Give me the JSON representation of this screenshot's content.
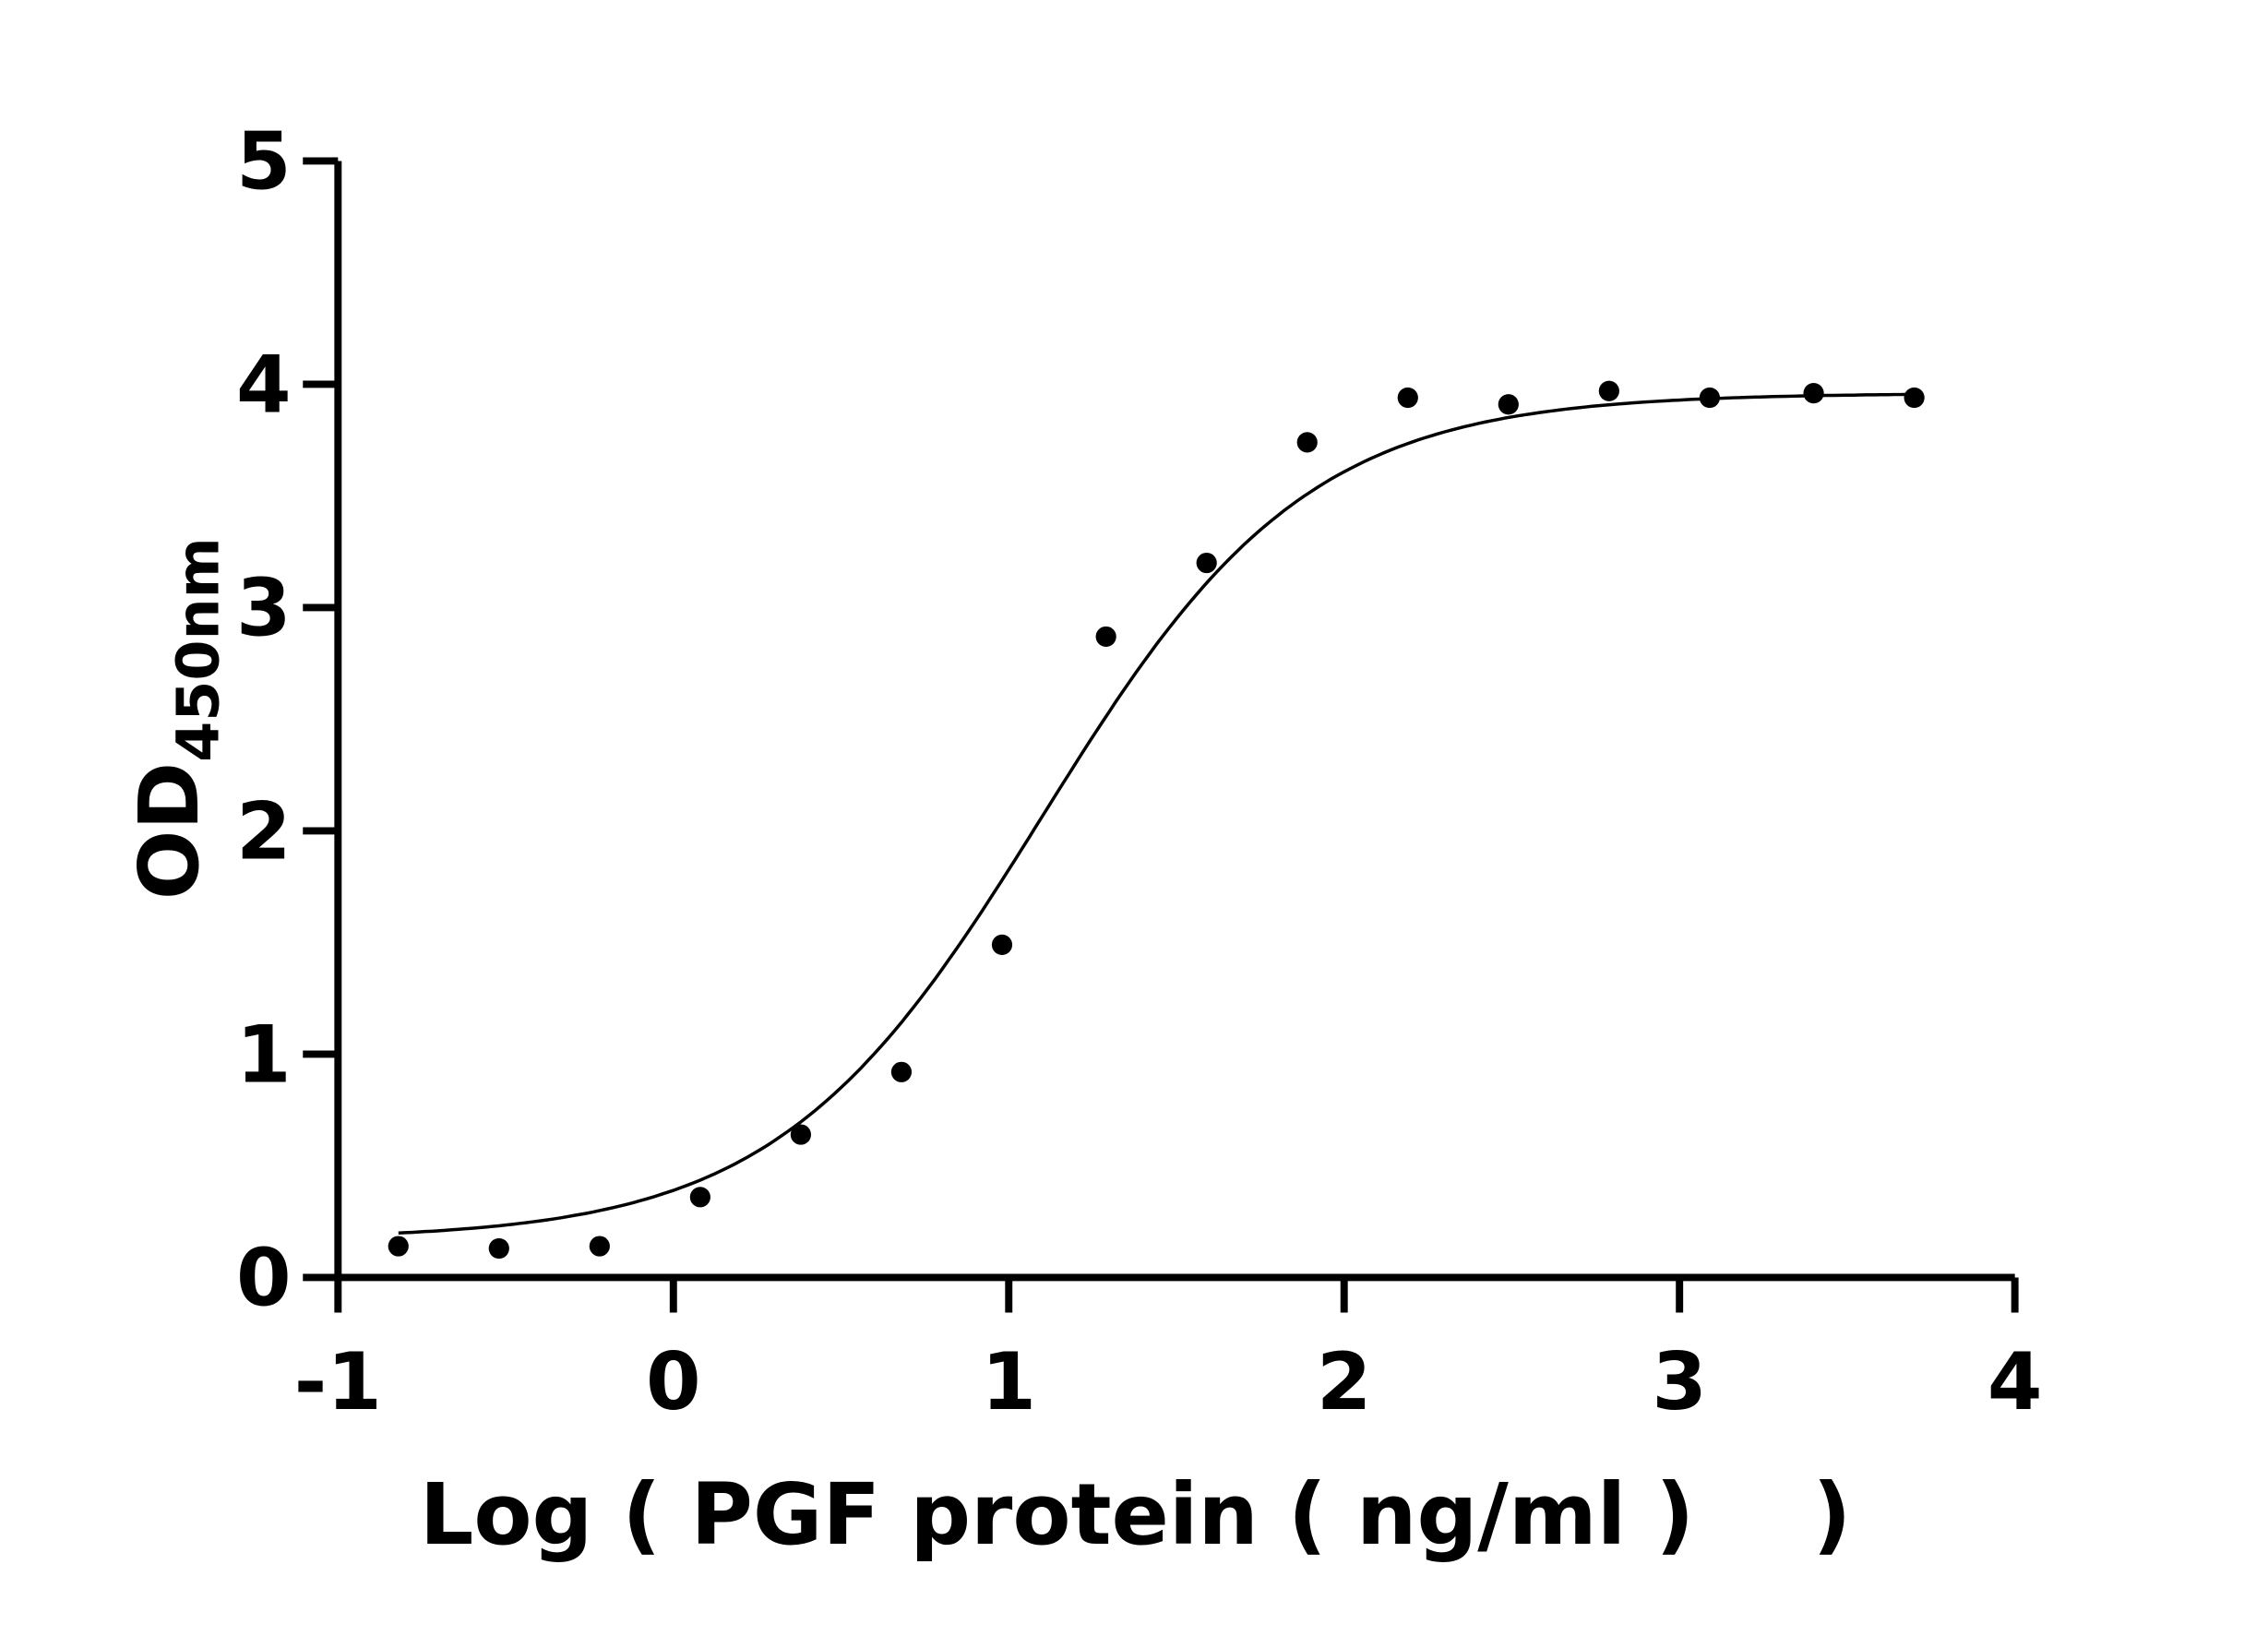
{
  "chart_data": {
    "type": "scatter",
    "title": "",
    "xlabel": "Log ( PGF protein ( ng/ml )    )",
    "ylabel": "OD",
    "ylabel_subscript": "450nm",
    "xlim": [
      -1,
      4
    ],
    "ylim": [
      0,
      5
    ],
    "xticks": [
      "-1",
      "0",
      "1",
      "2",
      "3",
      "4"
    ],
    "yticks": [
      "0",
      "1",
      "2",
      "3",
      "4",
      "5"
    ],
    "grid": false,
    "legend": "none",
    "colors": {
      "points": "#000000",
      "curve": "#000000"
    },
    "series": [
      {
        "x": [
          -0.82,
          -0.52,
          -0.22,
          0.08,
          0.38,
          0.68,
          0.98,
          1.29,
          1.59,
          1.89,
          2.19,
          2.49,
          2.79,
          3.09,
          3.4,
          3.7
        ],
        "y": [
          0.14,
          0.13,
          0.14,
          0.36,
          0.64,
          0.92,
          1.49,
          2.87,
          3.2,
          3.74,
          3.94,
          3.91,
          3.97,
          3.94,
          3.96,
          3.94
        ]
      }
    ],
    "fit_curve": "sigmoidal 4PL"
  }
}
